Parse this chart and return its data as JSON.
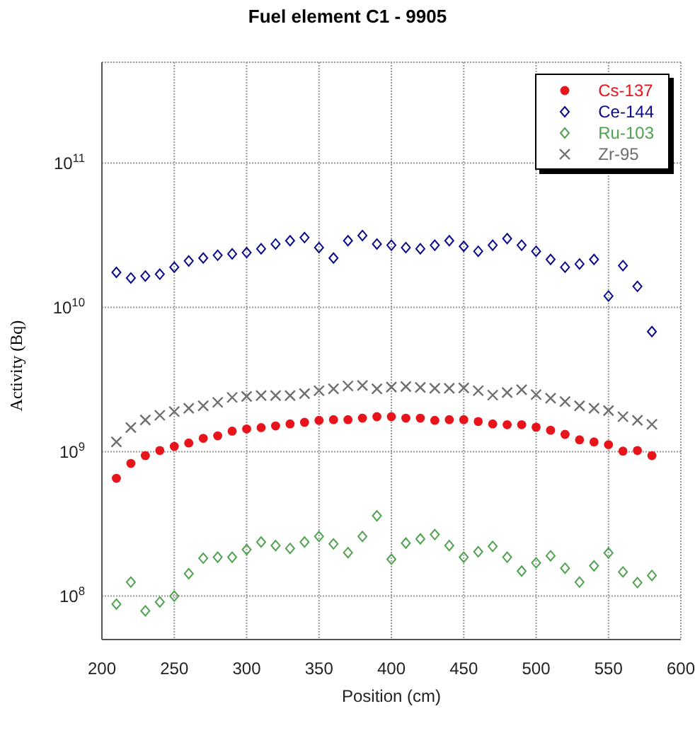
{
  "chart_data": {
    "type": "scatter",
    "title": "Fuel element C1 - 9905",
    "xlabel": "Position (cm)",
    "ylabel": "Activity (Bq)",
    "x": [
      210,
      220,
      230,
      240,
      250,
      260,
      270,
      280,
      290,
      300,
      310,
      320,
      330,
      340,
      350,
      360,
      370,
      380,
      390,
      400,
      410,
      420,
      430,
      440,
      450,
      460,
      470,
      480,
      490,
      500,
      510,
      520,
      530,
      540,
      550,
      560,
      570,
      580
    ],
    "series": [
      {
        "name": "Cs-137",
        "color": "#e8141b",
        "marker": "circle",
        "values": [
          655000000.0,
          830000000.0,
          940000000.0,
          1020000000.0,
          1090000000.0,
          1150000000.0,
          1240000000.0,
          1290000000.0,
          1390000000.0,
          1440000000.0,
          1470000000.0,
          1510000000.0,
          1560000000.0,
          1600000000.0,
          1650000000.0,
          1670000000.0,
          1670000000.0,
          1710000000.0,
          1750000000.0,
          1750000000.0,
          1710000000.0,
          1710000000.0,
          1650000000.0,
          1670000000.0,
          1670000000.0,
          1620000000.0,
          1560000000.0,
          1540000000.0,
          1540000000.0,
          1480000000.0,
          1410000000.0,
          1320000000.0,
          1210000000.0,
          1170000000.0,
          1120000000.0,
          1010000000.0,
          1020000000.0,
          940000000.0
        ]
      },
      {
        "name": "Ce-144",
        "color": "#0a0a8c",
        "marker": "diamond",
        "values": [
          17500000000.0,
          16000000000.0,
          16500000000.0,
          17000000000.0,
          19000000000.0,
          21000000000.0,
          22000000000.0,
          23000000000.0,
          23500000000.0,
          24000000000.0,
          25500000000.0,
          27500000000.0,
          29000000000.0,
          30500000000.0,
          26000000000.0,
          22000000000.0,
          29000000000.0,
          31500000000.0,
          27500000000.0,
          27000000000.0,
          26000000000.0,
          25500000000.0,
          27000000000.0,
          29000000000.0,
          26500000000.0,
          24500000000.0,
          27000000000.0,
          30000000000.0,
          27000000000.0,
          24500000000.0,
          21500000000.0,
          19000000000.0,
          20000000000.0,
          21500000000.0,
          12000000000.0,
          19500000000.0,
          14000000000.0,
          6800000000.0
        ]
      },
      {
        "name": "Ru-103",
        "color": "#4fa24f",
        "marker": "diamond",
        "values": [
          88000000.0,
          125000000.0,
          79000000.0,
          91000000.0,
          100000000.0,
          143000000.0,
          183000000.0,
          186000000.0,
          186000000.0,
          210000000.0,
          237000000.0,
          224000000.0,
          214000000.0,
          237000000.0,
          259000000.0,
          230000000.0,
          200000000.0,
          259000000.0,
          360000000.0,
          180000000.0,
          233000000.0,
          249000000.0,
          267000000.0,
          224000000.0,
          186000000.0,
          203000000.0,
          221000000.0,
          186000000.0,
          149000000.0,
          170000000.0,
          190000000.0,
          156000000.0,
          125000000.0,
          162000000.0,
          199000000.0,
          147000000.0,
          124000000.0,
          139000000.0
        ]
      },
      {
        "name": "Zr-95",
        "color": "#6e6e6e",
        "marker": "cross",
        "values": [
          1170000000.0,
          1470000000.0,
          1660000000.0,
          1790000000.0,
          1900000000.0,
          2000000000.0,
          2080000000.0,
          2200000000.0,
          2380000000.0,
          2420000000.0,
          2450000000.0,
          2450000000.0,
          2450000000.0,
          2530000000.0,
          2650000000.0,
          2730000000.0,
          2860000000.0,
          2880000000.0,
          2730000000.0,
          2810000000.0,
          2830000000.0,
          2790000000.0,
          2750000000.0,
          2750000000.0,
          2770000000.0,
          2650000000.0,
          2470000000.0,
          2570000000.0,
          2690000000.0,
          2490000000.0,
          2350000000.0,
          2230000000.0,
          2080000000.0,
          2000000000.0,
          1930000000.0,
          1750000000.0,
          1650000000.0,
          1550000000.0
        ]
      }
    ],
    "xlim": [
      200,
      600
    ],
    "xticks": [
      200,
      250,
      300,
      350,
      400,
      450,
      500,
      550,
      600
    ],
    "ylim": [
      50000000.0,
      500000000000.0
    ],
    "log": "y",
    "yticks": [
      {
        "value": 100000000.0,
        "label": "10$^{8}$"
      },
      {
        "value": 1000000000.0,
        "label": "10$^{9}$"
      },
      {
        "value": 10000000000.0,
        "label": "10$^{10}$"
      },
      {
        "value": 100000000000.0,
        "label": "10$^{11}$"
      }
    ],
    "grid": true,
    "legend": "top right"
  }
}
